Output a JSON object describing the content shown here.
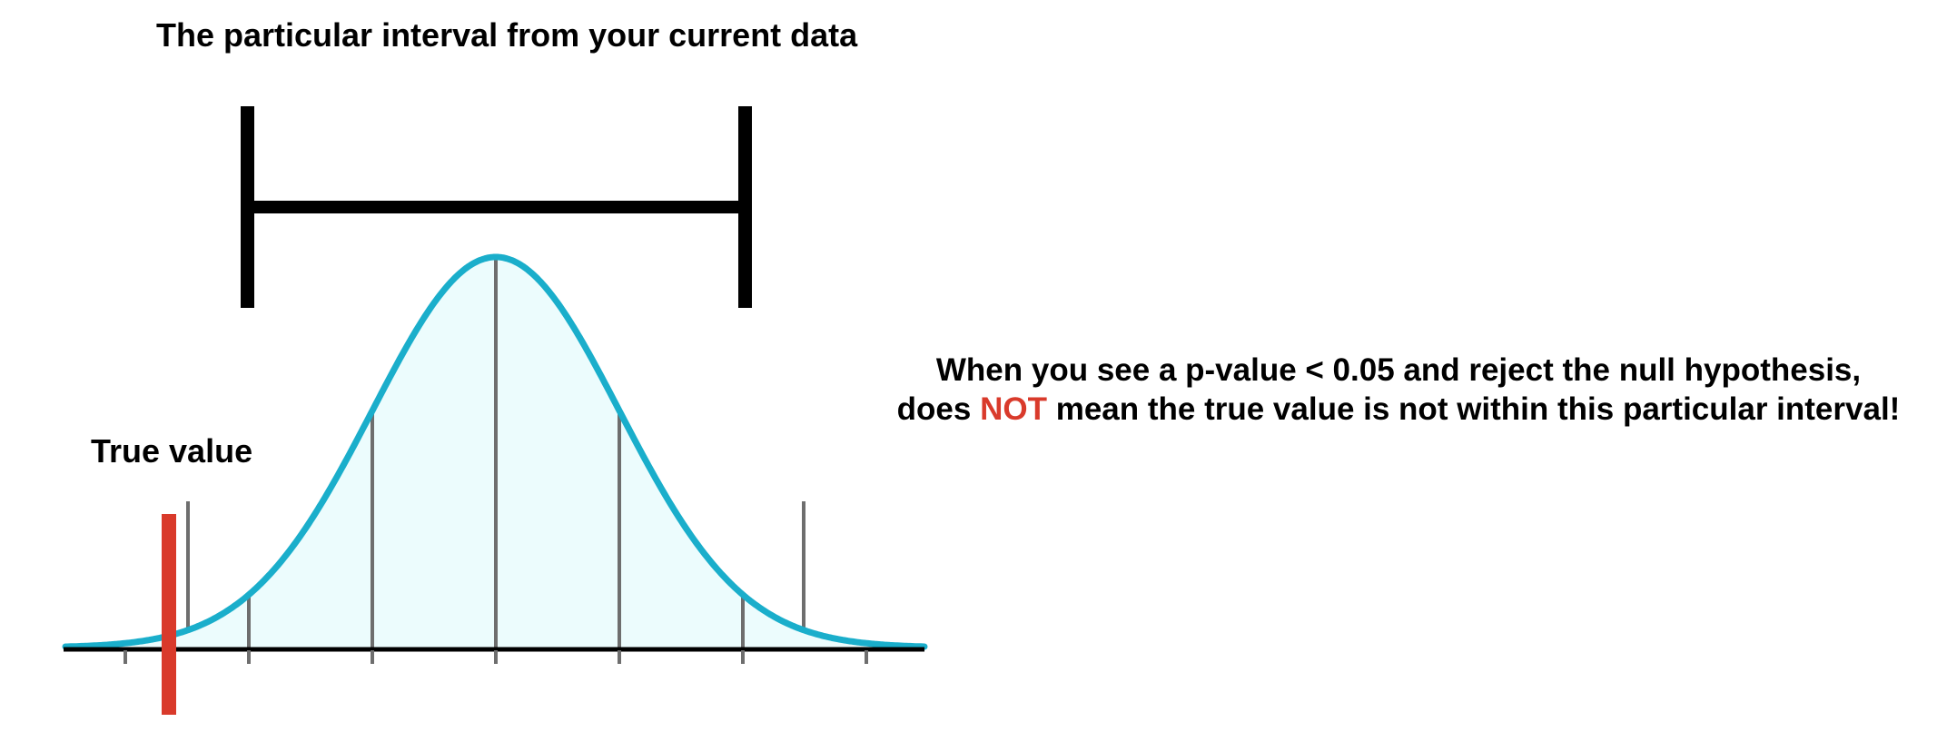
{
  "interval_title": "The particular interval from your current data",
  "true_value_label": "True value",
  "statement": {
    "line1": "When you see a p-value < 0.05 and reject the null hypothesis,",
    "line2_before": "does ",
    "line2_emphasis": "NOT",
    "line2_after": " mean the true value is not within this particular interval!"
  },
  "colors": {
    "curve": "#1aaecb",
    "curve_fill": "#ecfcfd",
    "true_value_marker": "#d93a2b",
    "emphasis_text": "#d93a2b",
    "interval_bracket": "#000000",
    "reference_lines": "#6e6e6e"
  }
}
